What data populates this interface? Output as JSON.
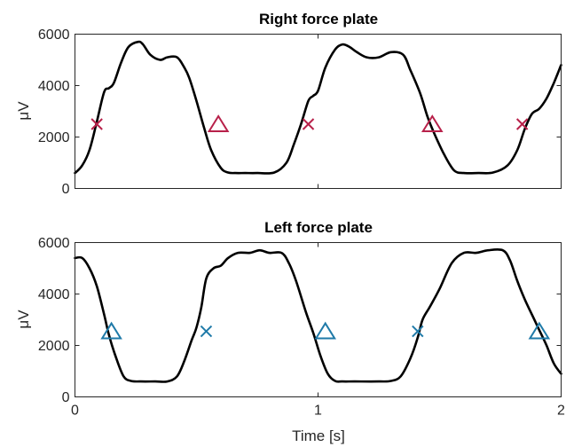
{
  "chart_data": [
    {
      "type": "line",
      "title": "Right force plate",
      "xlabel": "",
      "ylabel": "μV",
      "xlim": [
        0,
        2
      ],
      "ylim": [
        0,
        6000
      ],
      "xticks": [
        0,
        1,
        2
      ],
      "yticks": [
        0,
        2000,
        4000,
        6000
      ],
      "show_xtick_labels": false,
      "grid": false,
      "marker_color": "#b8214a",
      "series": [
        {
          "x": [
            0.0,
            0.03,
            0.06,
            0.09,
            0.12,
            0.14,
            0.16,
            0.19,
            0.22,
            0.26,
            0.28,
            0.31,
            0.35,
            0.38,
            0.42,
            0.45,
            0.47,
            0.5,
            0.53,
            0.56,
            0.6,
            0.63,
            0.66,
            0.7,
            0.75,
            0.82,
            0.87,
            0.9,
            0.93,
            0.96,
            0.98,
            1.0,
            1.03,
            1.07,
            1.1,
            1.13,
            1.16,
            1.2,
            1.25,
            1.3,
            1.35,
            1.38,
            1.42,
            1.45,
            1.48,
            1.52,
            1.56,
            1.6,
            1.66,
            1.72,
            1.78,
            1.82,
            1.85,
            1.88,
            1.91,
            1.94,
            1.97,
            2.0
          ],
          "y": [
            600,
            900,
            1500,
            2600,
            3750,
            3900,
            4100,
            4900,
            5500,
            5700,
            5600,
            5200,
            5000,
            5100,
            5100,
            4700,
            4300,
            3400,
            2400,
            1500,
            800,
            620,
            600,
            600,
            600,
            620,
            1000,
            1700,
            2500,
            3400,
            3600,
            3800,
            4700,
            5400,
            5600,
            5500,
            5300,
            5100,
            5100,
            5300,
            5200,
            4600,
            3700,
            2800,
            2100,
            1300,
            700,
            600,
            600,
            620,
            900,
            1500,
            2300,
            2900,
            3100,
            3500,
            4100,
            4800
          ]
        }
      ],
      "cross_markers": {
        "x": [
          0.09,
          0.96,
          1.84
        ],
        "y": [
          2500,
          2500,
          2500
        ]
      },
      "triangle_markers": {
        "x": [
          0.59,
          1.47
        ],
        "y": [
          2500,
          2500
        ]
      }
    },
    {
      "type": "line",
      "title": "Left force plate",
      "xlabel": "Time [s]",
      "ylabel": "μV",
      "xlim": [
        0,
        2
      ],
      "ylim": [
        0,
        6000
      ],
      "xticks": [
        0,
        1,
        2
      ],
      "yticks": [
        0,
        2000,
        4000,
        6000
      ],
      "show_xtick_labels": true,
      "grid": false,
      "marker_color": "#1f7aa8",
      "series": [
        {
          "x": [
            0.0,
            0.03,
            0.06,
            0.09,
            0.12,
            0.14,
            0.17,
            0.2,
            0.23,
            0.27,
            0.33,
            0.38,
            0.42,
            0.45,
            0.48,
            0.5,
            0.52,
            0.54,
            0.57,
            0.6,
            0.63,
            0.67,
            0.72,
            0.76,
            0.8,
            0.85,
            0.88,
            0.91,
            0.95,
            0.98,
            1.01,
            1.04,
            1.07,
            1.1,
            1.15,
            1.25,
            1.3,
            1.34,
            1.38,
            1.41,
            1.43,
            1.46,
            1.5,
            1.55,
            1.6,
            1.65,
            1.7,
            1.76,
            1.79,
            1.82,
            1.85,
            1.88,
            1.91,
            1.94,
            1.97,
            2.0
          ],
          "y": [
            5400,
            5400,
            5000,
            4300,
            3200,
            2400,
            1500,
            800,
            620,
            600,
            600,
            600,
            800,
            1400,
            2200,
            2700,
            3500,
            4600,
            5000,
            5100,
            5400,
            5600,
            5600,
            5700,
            5600,
            5600,
            5200,
            4500,
            3300,
            2500,
            1600,
            900,
            620,
            600,
            600,
            600,
            620,
            800,
            1500,
            2300,
            3000,
            3500,
            4200,
            5200,
            5600,
            5600,
            5700,
            5700,
            5300,
            4500,
            3800,
            3200,
            2600,
            2000,
            1300,
            900
          ]
        }
      ],
      "cross_markers": {
        "x": [
          0.54,
          1.41
        ],
        "y": [
          2550,
          2550
        ]
      },
      "triangle_markers": {
        "x": [
          0.15,
          1.03,
          1.91
        ],
        "y": [
          2550,
          2550,
          2550
        ]
      }
    }
  ]
}
